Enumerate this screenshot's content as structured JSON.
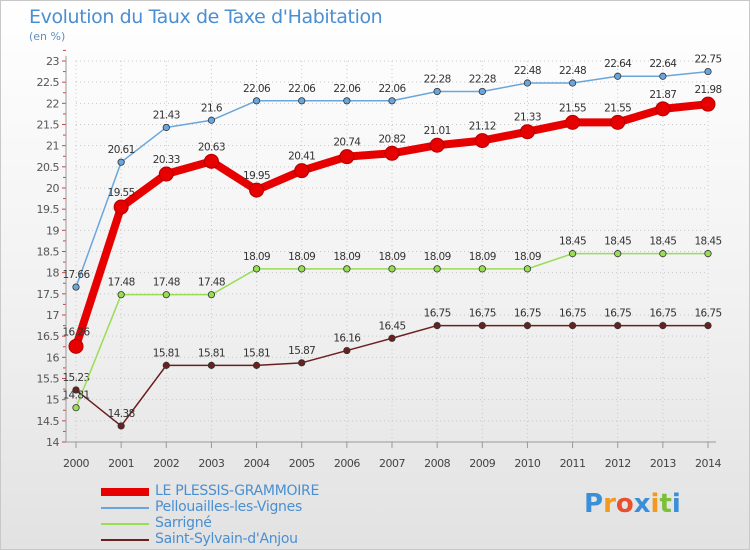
{
  "chart_data": {
    "type": "line",
    "title": "Evolution du Taux de Taxe d'Habitation",
    "subtitle": "(en %)",
    "x": [
      "2000",
      "2001",
      "2002",
      "2003",
      "2004",
      "2005",
      "2006",
      "2007",
      "2008",
      "2009",
      "2010",
      "2011",
      "2012",
      "2013",
      "2014"
    ],
    "ylim": [
      14,
      23
    ],
    "yticks": [
      "14",
      "14.5",
      "15",
      "15.5",
      "16",
      "16.5",
      "17",
      "17.5",
      "18",
      "18.5",
      "19",
      "19.5",
      "20",
      "20.5",
      "21",
      "21.5",
      "22",
      "22.5",
      "23"
    ],
    "grid": true,
    "legend_position": "bottom-left",
    "series": [
      {
        "name": "LE PLESSIS-GRAMMOIRE",
        "color": "#e60000",
        "values": [
          16.26,
          19.55,
          20.33,
          20.63,
          19.95,
          20.41,
          20.74,
          20.82,
          21.01,
          21.12,
          21.33,
          21.55,
          21.55,
          21.87,
          21.98
        ],
        "labels": [
          "16.26",
          "19.55",
          "20.33",
          "20.63",
          "19.95",
          "20.41",
          "20.74",
          "20.82",
          "21.01",
          "21.12",
          "21.33",
          "21.55",
          "21.55",
          "21.87",
          "21.98"
        ]
      },
      {
        "name": "Pellouailles-les-Vignes",
        "color": "#6aa6dc",
        "values": [
          17.66,
          20.61,
          21.43,
          21.6,
          22.06,
          22.06,
          22.06,
          22.06,
          22.28,
          22.28,
          22.48,
          22.48,
          22.64,
          22.64,
          22.75
        ],
        "labels": [
          "17.66",
          "20.61",
          "21.43",
          "21.6",
          "22.06",
          "22.06",
          "22.06",
          "22.06",
          "22.28",
          "22.28",
          "22.48",
          "22.48",
          "22.64",
          "22.64",
          "22.75"
        ]
      },
      {
        "name": "Sarrigné",
        "color": "#99dd55",
        "values": [
          14.81,
          17.48,
          17.48,
          17.48,
          18.09,
          18.09,
          18.09,
          18.09,
          18.09,
          18.09,
          18.09,
          18.45,
          18.45,
          18.45,
          18.45
        ],
        "labels": [
          "14.81",
          "17.48",
          "17.48",
          "17.48",
          "18.09",
          "18.09",
          "18.09",
          "18.09",
          "18.09",
          "18.09",
          "18.09",
          "18.45",
          "18.45",
          "18.45",
          "18.45"
        ]
      },
      {
        "name": "Saint-Sylvain-d'Anjou",
        "color": "#6b1f1f",
        "values": [
          15.23,
          14.38,
          15.81,
          15.81,
          15.81,
          15.87,
          16.16,
          16.45,
          16.75,
          16.75,
          16.75,
          16.75,
          16.75,
          16.75,
          16.75
        ],
        "labels": [
          "15.23",
          "14.38",
          "15.81",
          "15.81",
          "15.81",
          "15.87",
          "16.16",
          "16.45",
          "16.75",
          "16.75",
          "16.75",
          "16.75",
          "16.75",
          "16.75",
          "16.75"
        ]
      }
    ]
  },
  "brand": {
    "letters": [
      "P",
      "r",
      "o",
      "x",
      "i",
      "t",
      "i"
    ],
    "colors": [
      "#3b8fd9",
      "#f29a1f",
      "#e84f2f",
      "#3b8fd9",
      "#f29a1f",
      "#7bbf3a",
      "#3b8fd9"
    ]
  }
}
